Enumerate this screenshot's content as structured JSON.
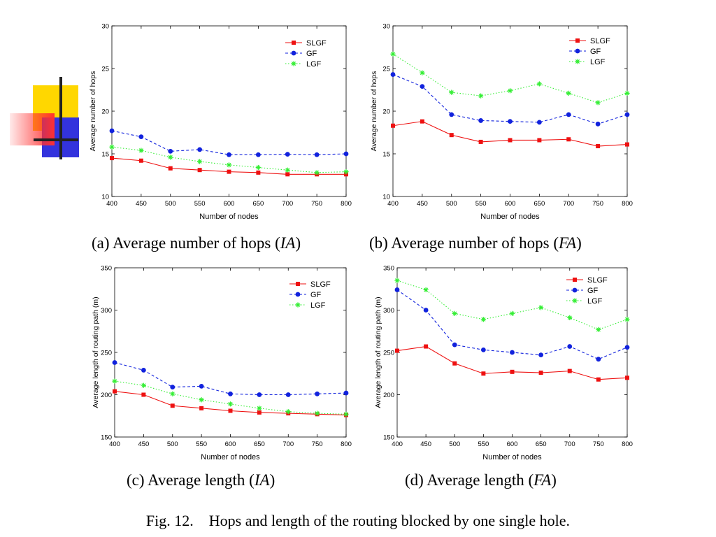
{
  "decoration": {
    "name": "slide-logo",
    "colors": [
      "#ffd700",
      "#ff3030",
      "#3333dd",
      "#222222"
    ]
  },
  "figure_caption": "Fig. 12.    Hops and length of the routing blocked by one single hole.",
  "colors": {
    "SLGF": "#ee1111",
    "GF": "#1122dd",
    "LGF": "#33ee33"
  },
  "chart_data": [
    {
      "type": "line",
      "label": "(a)",
      "caption": {
        "prefix": "(a)  Average number of hops (",
        "math": "IA",
        "suffix": ")"
      },
      "xlabel": "Number of nodes",
      "ylabel": "Average number of hops",
      "xlim": [
        400,
        800
      ],
      "ylim": [
        10,
        30
      ],
      "xticks": [
        400,
        450,
        500,
        550,
        600,
        650,
        700,
        750,
        800
      ],
      "yticks": [
        10,
        15,
        20,
        25,
        30
      ],
      "legend_position": "top-right",
      "x": [
        400,
        450,
        500,
        550,
        600,
        650,
        700,
        750,
        800
      ],
      "series": [
        {
          "name": "SLGF",
          "values": [
            14.5,
            14.2,
            13.3,
            13.1,
            12.9,
            12.8,
            12.6,
            12.6,
            12.6
          ],
          "color": "#ee1111",
          "dash": "solid",
          "marker": "square"
        },
        {
          "name": "GF",
          "values": [
            17.7,
            17.0,
            15.3,
            15.5,
            14.9,
            14.9,
            14.95,
            14.9,
            15.0
          ],
          "color": "#1122dd",
          "dash": "dashed",
          "marker": "circle"
        },
        {
          "name": "LGF",
          "values": [
            15.8,
            15.4,
            14.6,
            14.1,
            13.7,
            13.4,
            13.1,
            12.8,
            12.9
          ],
          "color": "#33ee33",
          "dash": "dotted",
          "marker": "star"
        }
      ]
    },
    {
      "type": "line",
      "label": "(b)",
      "caption": {
        "prefix": "(b)  Average number of hops (",
        "math": "FA",
        "suffix": ")"
      },
      "xlabel": "Number of nodes",
      "ylabel": "Average number of hops",
      "xlim": [
        400,
        800
      ],
      "ylim": [
        10,
        30
      ],
      "xticks": [
        400,
        450,
        500,
        550,
        600,
        650,
        700,
        750,
        800
      ],
      "yticks": [
        10,
        15,
        20,
        25,
        30
      ],
      "legend_position": "top-right",
      "x": [
        400,
        450,
        500,
        550,
        600,
        650,
        700,
        750,
        800
      ],
      "series": [
        {
          "name": "SLGF",
          "values": [
            18.3,
            18.8,
            17.2,
            16.4,
            16.6,
            16.6,
            16.7,
            15.9,
            16.1
          ],
          "color": "#ee1111",
          "dash": "solid",
          "marker": "square"
        },
        {
          "name": "GF",
          "values": [
            24.3,
            22.9,
            19.6,
            18.9,
            18.8,
            18.7,
            19.6,
            18.5,
            19.6
          ],
          "color": "#1122dd",
          "dash": "dashed",
          "marker": "circle"
        },
        {
          "name": "LGF",
          "values": [
            26.7,
            24.5,
            22.2,
            21.8,
            22.4,
            23.2,
            22.1,
            21.0,
            22.1
          ],
          "color": "#33ee33",
          "dash": "dotted",
          "marker": "star"
        }
      ]
    },
    {
      "type": "line",
      "label": "(c)",
      "caption": {
        "prefix": "(c)  Average length (",
        "math": "IA",
        "suffix": ")"
      },
      "xlabel": "Number of nodes",
      "ylabel": "Average length of routing path (m)",
      "xlim": [
        400,
        800
      ],
      "ylim": [
        150,
        350
      ],
      "xticks": [
        400,
        450,
        500,
        550,
        600,
        650,
        700,
        750,
        800
      ],
      "yticks": [
        150,
        200,
        250,
        300,
        350
      ],
      "legend_position": "top-right",
      "x": [
        400,
        450,
        500,
        550,
        600,
        650,
        700,
        750,
        800
      ],
      "series": [
        {
          "name": "SLGF",
          "values": [
            204,
            200,
            187,
            184,
            181,
            179,
            178,
            177,
            176
          ],
          "color": "#ee1111",
          "dash": "solid",
          "marker": "square"
        },
        {
          "name": "GF",
          "values": [
            238,
            229,
            209,
            210,
            201,
            200,
            200,
            201,
            202
          ],
          "color": "#1122dd",
          "dash": "dashed",
          "marker": "circle"
        },
        {
          "name": "LGF",
          "values": [
            216,
            211,
            201,
            194,
            189,
            184,
            180,
            178,
            177
          ],
          "color": "#33ee33",
          "dash": "dotted",
          "marker": "star"
        }
      ]
    },
    {
      "type": "line",
      "label": "(d)",
      "caption": {
        "prefix": "(d)  Average length (",
        "math": "FA",
        "suffix": ")"
      },
      "xlabel": "Number of nodes",
      "ylabel": "Average length of routing path (m)",
      "xlim": [
        400,
        800
      ],
      "ylim": [
        150,
        350
      ],
      "xticks": [
        400,
        450,
        500,
        550,
        600,
        650,
        700,
        750,
        800
      ],
      "yticks": [
        150,
        200,
        250,
        300,
        350
      ],
      "legend_position": "top-right",
      "x": [
        400,
        450,
        500,
        550,
        600,
        650,
        700,
        750,
        800
      ],
      "series": [
        {
          "name": "SLGF",
          "values": [
            252,
            257,
            237,
            225,
            227,
            226,
            228,
            218,
            220
          ],
          "color": "#ee1111",
          "dash": "solid",
          "marker": "square"
        },
        {
          "name": "GF",
          "values": [
            324,
            300,
            259,
            253,
            250,
            247,
            257,
            242,
            256
          ],
          "color": "#1122dd",
          "dash": "dashed",
          "marker": "circle"
        },
        {
          "name": "LGF",
          "values": [
            335,
            324,
            296,
            289,
            296,
            303,
            291,
            277,
            289
          ],
          "color": "#33ee33",
          "dash": "dotted",
          "marker": "star"
        }
      ]
    }
  ]
}
